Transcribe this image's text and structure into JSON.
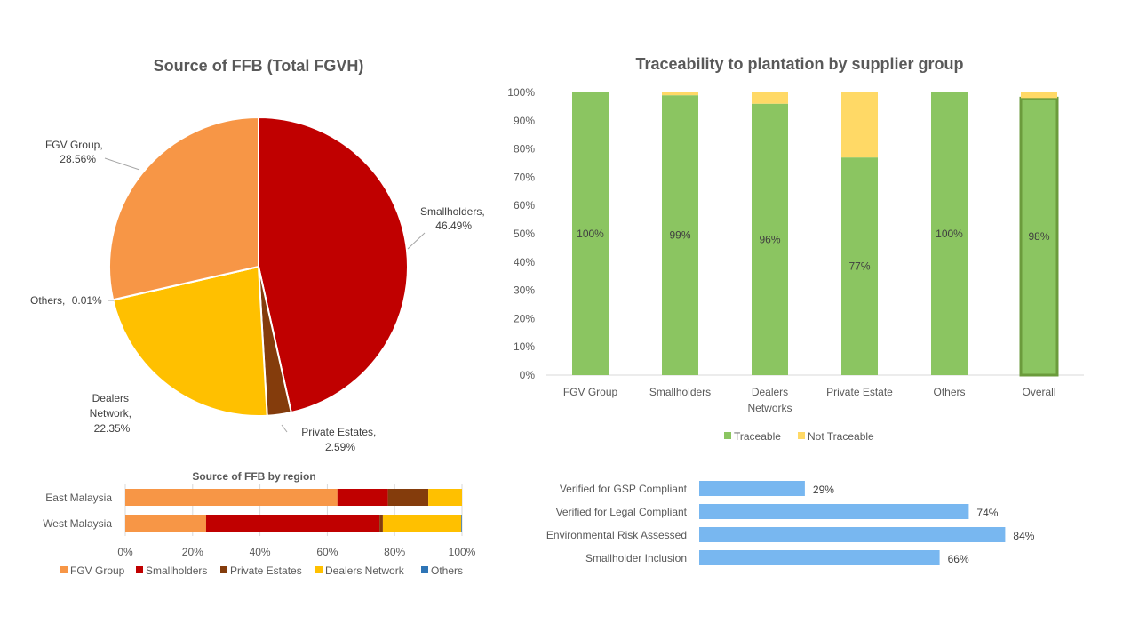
{
  "colors": {
    "fgv": "#f79646",
    "smallholders": "#c00000",
    "private": "#843c0c",
    "dealers": "#ffc000",
    "others": "#2e75b6",
    "traceable": "#8bc561",
    "not_traceable": "#ffd966",
    "kpi_bar": "#78b7f0",
    "text": "#595959",
    "title": "#595959",
    "grid": "#d9d9d9",
    "overall_border": "#6b9b3c"
  },
  "chart_data": [
    {
      "id": "pie",
      "type": "pie",
      "title": "Source of FFB (Total FGVH)",
      "slices": [
        {
          "key": "smallholders",
          "label": "Smallholders,",
          "value_text": "46.49%",
          "value": 46.49
        },
        {
          "key": "private",
          "label": "Private Estates,",
          "value_text": "2.59%",
          "value": 2.59
        },
        {
          "key": "dealers",
          "label": "Dealers Network,",
          "value_text": "22.35%",
          "value": 22.35
        },
        {
          "key": "others",
          "label": "Others,",
          "value_text": "0.01%",
          "value": 0.01
        },
        {
          "key": "fgv",
          "label": "FGV Group,",
          "value_text": "28.56%",
          "value": 28.56
        }
      ]
    },
    {
      "id": "region",
      "type": "bar",
      "orientation": "horizontal",
      "stacked": "percent",
      "title": "Source of FFB by region",
      "categories": [
        "East Malaysia",
        "West Malaysia"
      ],
      "series": [
        {
          "key": "fgv",
          "name": "FGV Group",
          "values": [
            63,
            24
          ]
        },
        {
          "key": "smallholders",
          "name": "Smallholders",
          "values": [
            15,
            51.5
          ]
        },
        {
          "key": "private",
          "name": "Private Estates",
          "values": [
            12,
            1
          ]
        },
        {
          "key": "dealers",
          "name": "Dealers Network",
          "values": [
            10,
            23.3
          ]
        },
        {
          "key": "others",
          "name": "Others",
          "values": [
            0,
            0.2
          ]
        }
      ],
      "xlim": [
        0,
        100
      ],
      "xticks": [
        "0%",
        "20%",
        "40%",
        "60%",
        "80%",
        "100%"
      ],
      "legend": "bottom"
    },
    {
      "id": "trace",
      "type": "bar",
      "stacked": "percent",
      "title": "Traceability to plantation by supplier group",
      "categories": [
        "FGV Group",
        "Smallholders",
        "Dealers Networks",
        "Private Estate",
        "Others",
        "Overall"
      ],
      "series": [
        {
          "key": "traceable",
          "name": "Traceable",
          "values": [
            100,
            99,
            96,
            77,
            100,
            98
          ]
        },
        {
          "key": "not_traceable",
          "name": "Not Traceable",
          "values": [
            0,
            1,
            4,
            23,
            0,
            2
          ]
        }
      ],
      "data_labels": [
        "100%",
        "99%",
        "96%",
        "77%",
        "100%",
        "98%"
      ],
      "ylim": [
        0,
        100
      ],
      "yticks": [
        "0%",
        "10%",
        "20%",
        "30%",
        "40%",
        "50%",
        "60%",
        "70%",
        "80%",
        "90%",
        "100%"
      ],
      "legend": "bottom"
    },
    {
      "id": "kpi",
      "type": "bar",
      "orientation": "horizontal",
      "categories": [
        "Verified for GSP Compliant",
        "Verified for Legal Compliant",
        "Environmental Risk Assessed",
        "Smallholder Inclusion"
      ],
      "values": [
        29,
        74,
        84,
        66
      ],
      "data_labels": [
        "29%",
        "74%",
        "84%",
        "66%"
      ]
    }
  ]
}
